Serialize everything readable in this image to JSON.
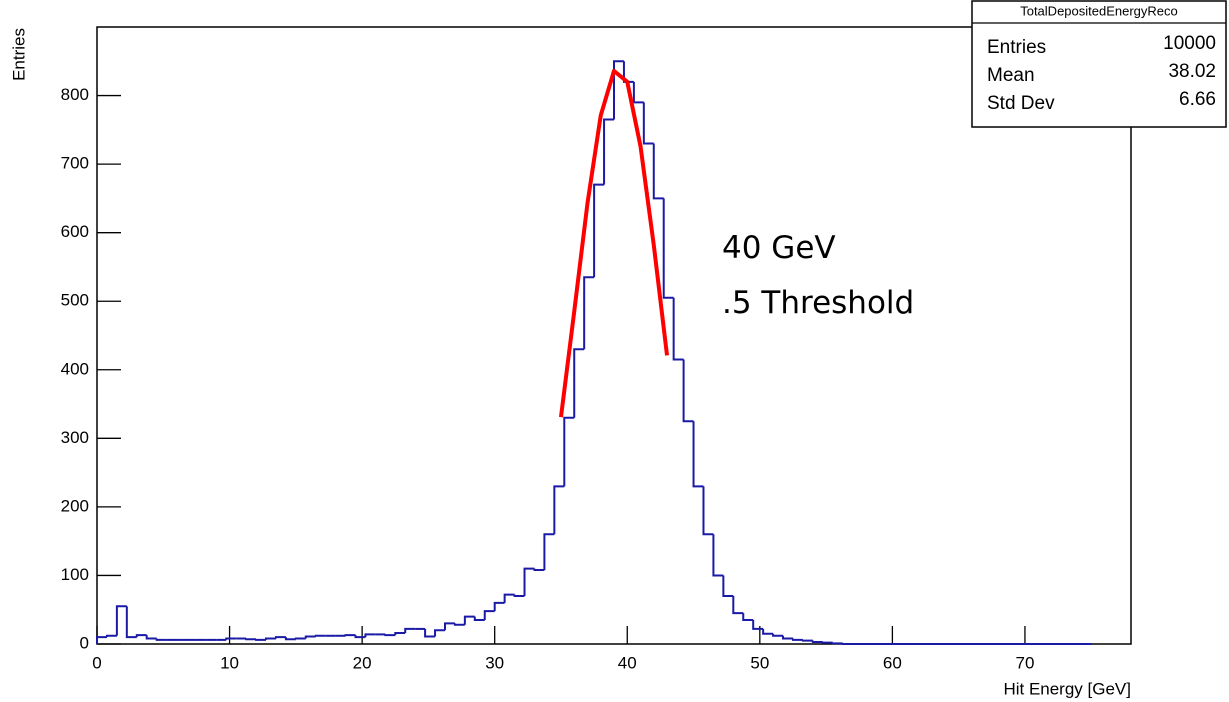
{
  "chart_data": {
    "type": "histogram",
    "x_label": "Hit Energy [GeV]",
    "y_label": "Entries",
    "color": "#1a1aa6",
    "bins": [
      0,
      0.75,
      1.5,
      2.25,
      3,
      3.75,
      4.5,
      5.25,
      6,
      6.75,
      7.5,
      8.25,
      9,
      9.75,
      10.5,
      11.25,
      12,
      12.75,
      13.5,
      14.25,
      15,
      15.75,
      16.5,
      17.25,
      18,
      18.75,
      19.5,
      20.25,
      21,
      21.75,
      22.5,
      23.25,
      24,
      24.75,
      25.5,
      26.25,
      27,
      27.75,
      28.5,
      29.25,
      30,
      30.75,
      31.5,
      32.25,
      33,
      33.75,
      34.5,
      35.25,
      36,
      36.75,
      37.5,
      38.25,
      39,
      39.75,
      40.5,
      41.25,
      42,
      42.75,
      43.5,
      44.25,
      45,
      45.75,
      46.5,
      47.25,
      48,
      48.75,
      49.5,
      50.25,
      51,
      51.75,
      52.5,
      53.25,
      54,
      54.75,
      55.5,
      56.25,
      57,
      57.75,
      58.5,
      59.25,
      60,
      60.75,
      61.5,
      62.25,
      63,
      63.75,
      64.5,
      65.25,
      66,
      66.75,
      67.5,
      68.25,
      69,
      69.75,
      70.5,
      71.25,
      72,
      72.75,
      73.5,
      74.25,
      75
    ],
    "values": [
      10,
      12,
      55,
      10,
      13,
      8,
      6,
      6,
      6,
      6,
      6,
      6,
      6,
      8,
      8,
      7,
      6,
      8,
      10,
      7,
      8,
      11,
      12,
      12,
      12,
      13,
      10,
      14,
      14,
      13,
      16,
      22,
      22,
      11,
      20,
      30,
      28,
      40,
      35,
      48,
      60,
      72,
      70,
      110,
      108,
      160,
      230,
      330,
      430,
      535,
      670,
      765,
      850,
      820,
      790,
      730,
      650,
      505,
      415,
      325,
      230,
      160,
      100,
      70,
      45,
      35,
      22,
      15,
      12,
      8,
      6,
      5,
      3,
      2,
      1,
      0,
      0,
      0,
      0,
      0,
      0,
      0,
      0,
      0,
      0,
      0,
      0,
      0,
      0,
      0,
      0,
      0,
      0,
      0,
      0,
      0,
      0,
      0,
      0,
      0
    ],
    "fit": {
      "color": "#ff0000",
      "x": [
        35,
        36,
        37,
        38,
        39,
        40,
        41,
        42,
        43
      ],
      "values": [
        331,
        485,
        643,
        771,
        836,
        820,
        726,
        582,
        421
      ]
    },
    "xlim": [
      0,
      78
    ],
    "ylim": [
      0,
      900
    ],
    "xticks": [
      0,
      10,
      20,
      30,
      40,
      50,
      60,
      70
    ],
    "yticks": [
      0,
      100,
      200,
      300,
      400,
      500,
      600,
      700,
      800
    ],
    "annotations": [
      "40 GeV",
      ".5 Threshold"
    ],
    "stats": {
      "title": "TotalDepositedEnergyReco",
      "rows": [
        [
          "Entries",
          "10000"
        ],
        [
          "Mean",
          "38.02"
        ],
        [
          "Std Dev",
          "6.66"
        ]
      ]
    }
  }
}
